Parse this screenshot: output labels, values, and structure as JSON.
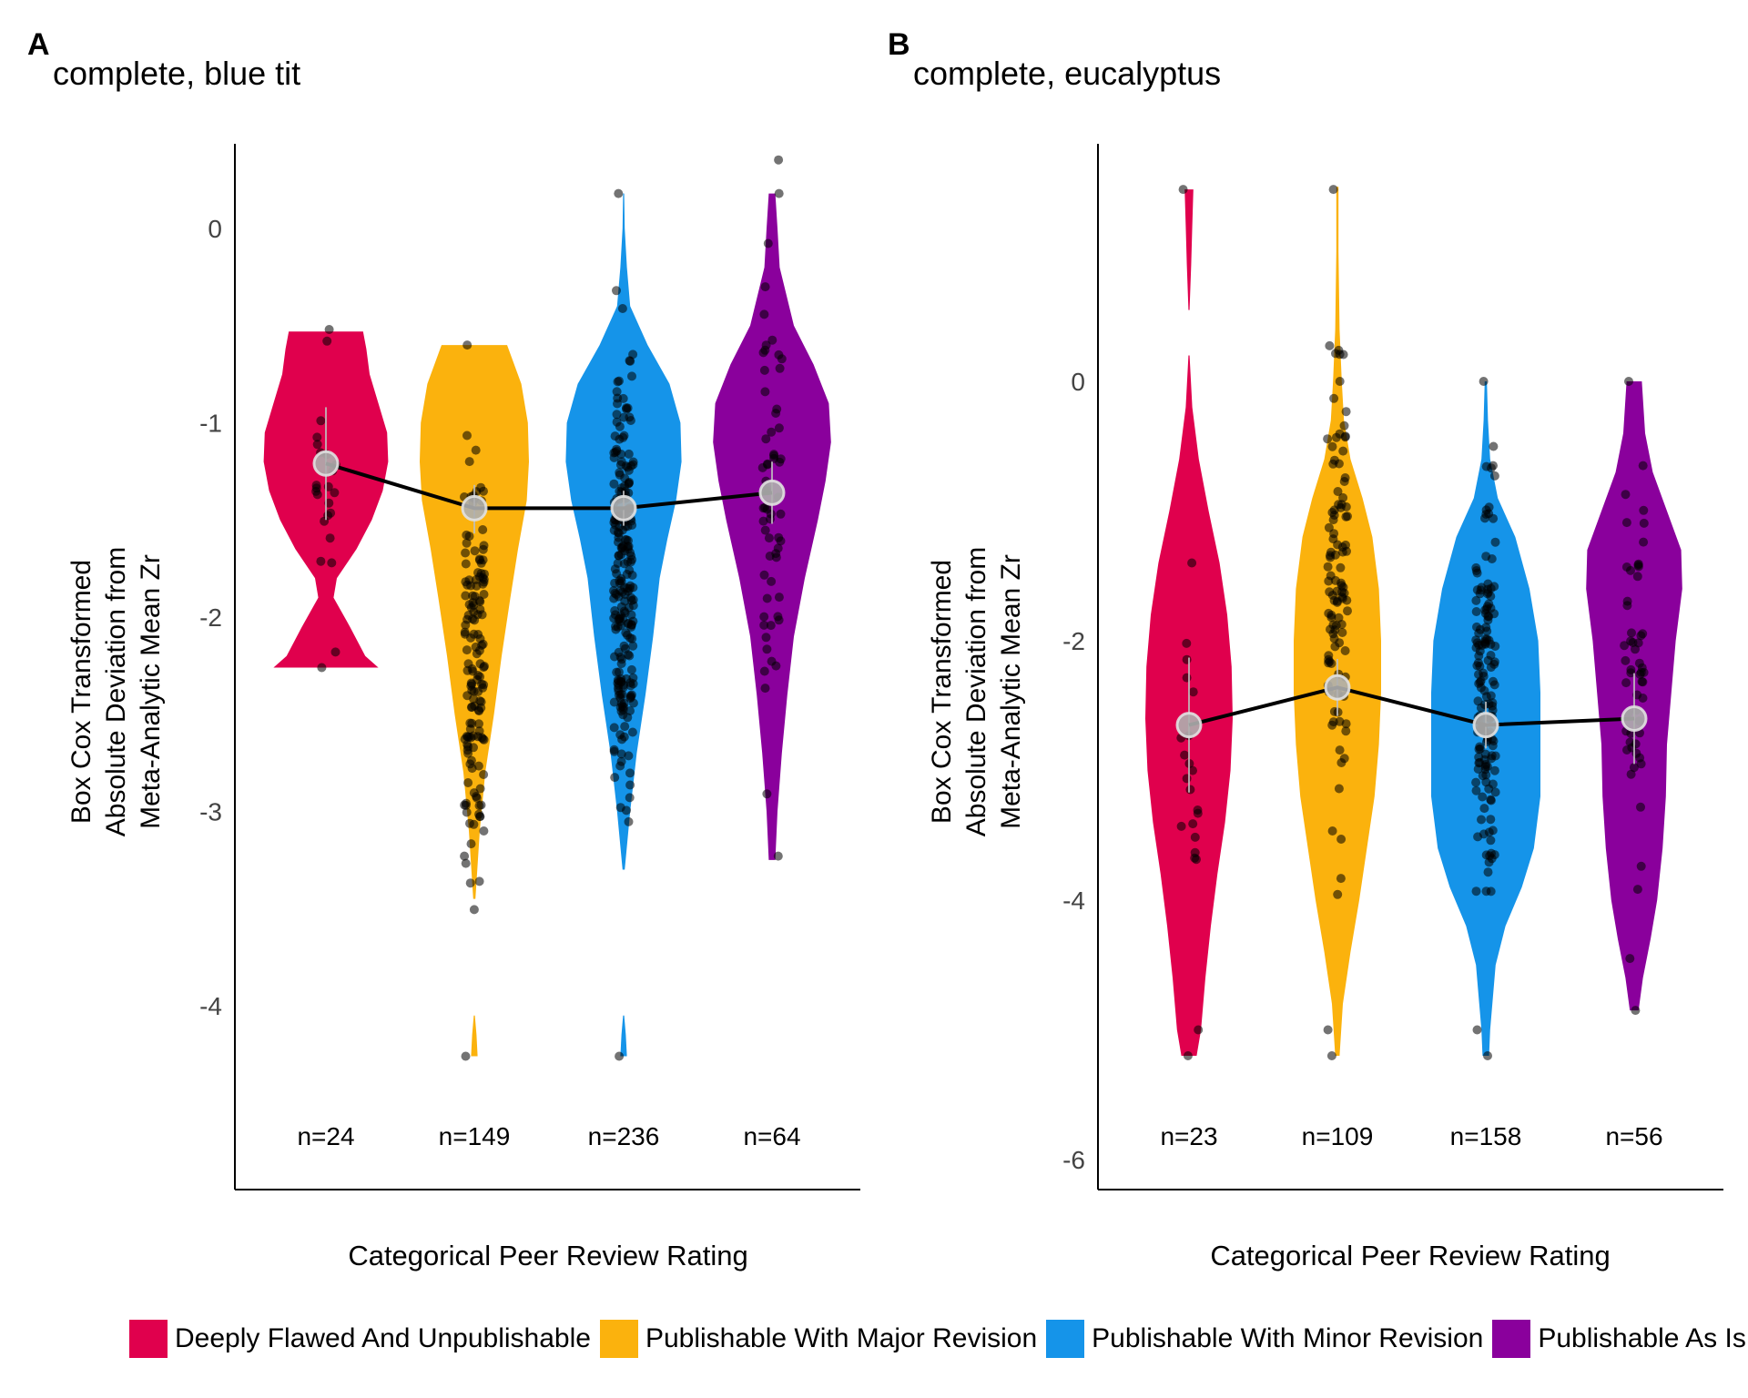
{
  "legend": [
    {
      "label": "Deeply Flawed And Unpublishable",
      "color": "#e0004d"
    },
    {
      "label": "Publishable With Major Revision",
      "color": "#fbb20d"
    },
    {
      "label": "Publishable With Minor Revision",
      "color": "#1594e9"
    },
    {
      "label": "Publishable As Is",
      "color": "#8a009c"
    }
  ],
  "chart_data": [
    {
      "type": "violin",
      "panel": "A",
      "title": "complete, blue tit",
      "ylabel_lines": [
        "Box Cox Transformed",
        "Absolute Deviation from",
        "Meta-Analytic Mean Zr"
      ],
      "xlabel": "Categorical Peer Review Rating",
      "yticks": [
        0,
        -1,
        -2,
        -3,
        -4
      ],
      "ylim": [
        -4.95,
        0.43
      ],
      "grid": false,
      "categories": [
        "Deeply Flawed And Unpublishable",
        "Publishable With Major Revision",
        "Publishable With Minor Revision",
        "Publishable As Is"
      ],
      "counts": [
        "n=24",
        "n=149",
        "n=236",
        "n=64"
      ],
      "means": [
        -1.21,
        -1.44,
        -1.44,
        -1.36
      ],
      "mean_error": [
        [
          -1.5,
          -0.92
        ],
        [
          -1.57,
          -1.32
        ],
        [
          -1.53,
          -1.35
        ],
        [
          -1.52,
          -1.2
        ]
      ],
      "density": [
        [
          [
            -2.26,
            48
          ],
          [
            -2.2,
            36
          ],
          [
            -2.05,
            22
          ],
          [
            -1.9,
            7
          ],
          [
            -1.8,
            10
          ],
          [
            -1.65,
            28
          ],
          [
            -1.5,
            42
          ],
          [
            -1.35,
            52
          ],
          [
            -1.2,
            57
          ],
          [
            -1.05,
            56
          ],
          [
            -0.9,
            48
          ],
          [
            -0.75,
            40
          ],
          [
            -0.62,
            37
          ],
          [
            -0.53,
            34
          ]
        ],
        [
          [
            -3.45,
            1
          ],
          [
            -3.1,
            5
          ],
          [
            -2.8,
            10
          ],
          [
            -2.5,
            18
          ],
          [
            -2.2,
            25
          ],
          [
            -1.9,
            33
          ],
          [
            -1.65,
            40
          ],
          [
            -1.4,
            48
          ],
          [
            -1.2,
            50
          ],
          [
            -1.0,
            49
          ],
          [
            -0.8,
            43
          ],
          [
            -0.6,
            30
          ]
        ],
        [
          [
            -3.3,
            1
          ],
          [
            -3.0,
            6
          ],
          [
            -2.7,
            12
          ],
          [
            -2.4,
            20
          ],
          [
            -2.1,
            27
          ],
          [
            -1.8,
            33
          ],
          [
            -1.6,
            40
          ],
          [
            -1.4,
            48
          ],
          [
            -1.2,
            53
          ],
          [
            -1.0,
            52
          ],
          [
            -0.8,
            42
          ],
          [
            -0.6,
            22
          ],
          [
            -0.4,
            6
          ],
          [
            -0.2,
            3
          ],
          [
            0.0,
            1
          ],
          [
            0.18,
            0.5
          ]
        ],
        [
          [
            -3.25,
            3
          ],
          [
            -3.0,
            5
          ],
          [
            -2.7,
            9
          ],
          [
            -2.4,
            14
          ],
          [
            -2.1,
            20
          ],
          [
            -1.8,
            30
          ],
          [
            -1.5,
            42
          ],
          [
            -1.3,
            49
          ],
          [
            -1.1,
            54
          ],
          [
            -0.9,
            52
          ],
          [
            -0.7,
            38
          ],
          [
            -0.5,
            20
          ],
          [
            -0.2,
            7
          ],
          [
            0.0,
            5
          ],
          [
            0.18,
            3
          ]
        ]
      ],
      "extra_density": [
        {
          "category": 1,
          "shape": [
            [
              -4.26,
              3
            ],
            [
              -4.15,
              2
            ],
            [
              -4.05,
              0.5
            ]
          ]
        },
        {
          "category": 2,
          "shape": [
            [
              -4.26,
              3
            ],
            [
              -4.15,
              2
            ],
            [
              -4.05,
              0.5
            ]
          ]
        }
      ],
      "points_ranges": [
        [
          -2.26,
          -0.52
        ],
        [
          -4.26,
          -0.6
        ],
        [
          -4.26,
          0.18
        ],
        [
          -3.23,
          0.18
        ]
      ],
      "point_counts": [
        24,
        149,
        236,
        64
      ],
      "outliers": [
        [
          -2.26,
          -2.18,
          -0.52,
          -0.58
        ],
        [
          -4.26,
          -3.23,
          -2.97,
          -0.6
        ],
        [
          -4.26,
          -2.98,
          0.18,
          -0.32
        ],
        [
          -3.23,
          -2.91,
          0.18,
          -0.3
        ]
      ]
    },
    {
      "type": "violin",
      "panel": "B",
      "title": "complete, eucalyptus",
      "ylabel_lines": [
        "Box Cox Transformed",
        "Absolute Deviation from",
        "Meta-Analytic Mean Zr"
      ],
      "xlabel": "Categorical Peer Review Rating",
      "yticks": [
        0,
        -2,
        -4,
        -6
      ],
      "ylim": [
        -6.25,
        1.85
      ],
      "grid": false,
      "categories": [
        "Deeply Flawed And Unpublishable",
        "Publishable With Major Revision",
        "Publishable With Minor Revision",
        "Publishable As Is"
      ],
      "counts": [
        "n=23",
        "n=109",
        "n=158",
        "n=56"
      ],
      "means": [
        -2.65,
        -2.36,
        -2.65,
        -2.6
      ],
      "mean_error": [
        [
          -3.17,
          -2.13
        ],
        [
          -2.58,
          -2.14
        ],
        [
          -2.83,
          -2.47
        ],
        [
          -2.95,
          -2.25
        ]
      ],
      "density": [
        [
          [
            -5.2,
            7
          ],
          [
            -5.0,
            11
          ],
          [
            -4.6,
            15
          ],
          [
            -4.2,
            20
          ],
          [
            -3.8,
            26
          ],
          [
            -3.4,
            33
          ],
          [
            -3.0,
            38
          ],
          [
            -2.6,
            40
          ],
          [
            -2.2,
            39
          ],
          [
            -1.8,
            35
          ],
          [
            -1.4,
            28
          ],
          [
            -1.0,
            18
          ],
          [
            -0.6,
            9
          ],
          [
            -0.2,
            3
          ],
          [
            0.2,
            0.5
          ]
        ],
        [
          [
            -5.2,
            2
          ],
          [
            -4.8,
            5
          ],
          [
            -4.4,
            12
          ],
          [
            -4.0,
            20
          ],
          [
            -3.6,
            27
          ],
          [
            -3.2,
            34
          ],
          [
            -2.8,
            38
          ],
          [
            -2.4,
            40
          ],
          [
            -2.0,
            40
          ],
          [
            -1.6,
            38
          ],
          [
            -1.2,
            32
          ],
          [
            -0.9,
            23
          ],
          [
            -0.6,
            12
          ],
          [
            -0.3,
            6
          ],
          [
            0.0,
            4
          ],
          [
            0.4,
            2
          ],
          [
            1.0,
            1
          ],
          [
            1.5,
            1
          ]
        ],
        [
          [
            -5.2,
            3
          ],
          [
            -5.0,
            4
          ],
          [
            -4.8,
            6
          ],
          [
            -4.5,
            9
          ],
          [
            -4.2,
            18
          ],
          [
            -3.9,
            33
          ],
          [
            -3.6,
            44
          ],
          [
            -3.2,
            50
          ],
          [
            -2.8,
            50
          ],
          [
            -2.4,
            50
          ],
          [
            -2.0,
            48
          ],
          [
            -1.6,
            40
          ],
          [
            -1.2,
            27
          ],
          [
            -0.9,
            11
          ],
          [
            -0.6,
            4
          ],
          [
            -0.3,
            2
          ],
          [
            0.0,
            1
          ]
        ],
        [
          [
            -4.85,
            4
          ],
          [
            -4.6,
            8
          ],
          [
            -4.3,
            15
          ],
          [
            -4.0,
            21
          ],
          [
            -3.6,
            26
          ],
          [
            -3.2,
            29
          ],
          [
            -2.8,
            30
          ],
          [
            -2.4,
            34
          ],
          [
            -2.0,
            38
          ],
          [
            -1.6,
            44
          ],
          [
            -1.3,
            43
          ],
          [
            -1.0,
            30
          ],
          [
            -0.7,
            17
          ],
          [
            -0.4,
            10
          ],
          [
            0.0,
            7
          ]
        ]
      ],
      "extra_density": [
        {
          "category": 0,
          "shape": [
            [
              0.55,
              0.5
            ],
            [
              0.9,
              2
            ],
            [
              1.2,
              3
            ],
            [
              1.48,
              4
            ]
          ]
        }
      ],
      "points_ranges": [
        [
          -5.2,
          -1.4
        ],
        [
          -5.2,
          1.48
        ],
        [
          -5.2,
          0.0
        ],
        [
          -4.85,
          0.0
        ]
      ],
      "point_counts": [
        23,
        109,
        158,
        56
      ],
      "outliers": [
        [
          -5.2,
          -5.0,
          1.48,
          -1.4
        ],
        [
          -5.2,
          -5.0,
          1.48,
          0.0
        ],
        [
          -5.2,
          -5.0,
          0.0,
          -0.65
        ],
        [
          -4.85,
          0.0,
          -0.65,
          -4.45
        ]
      ]
    }
  ]
}
